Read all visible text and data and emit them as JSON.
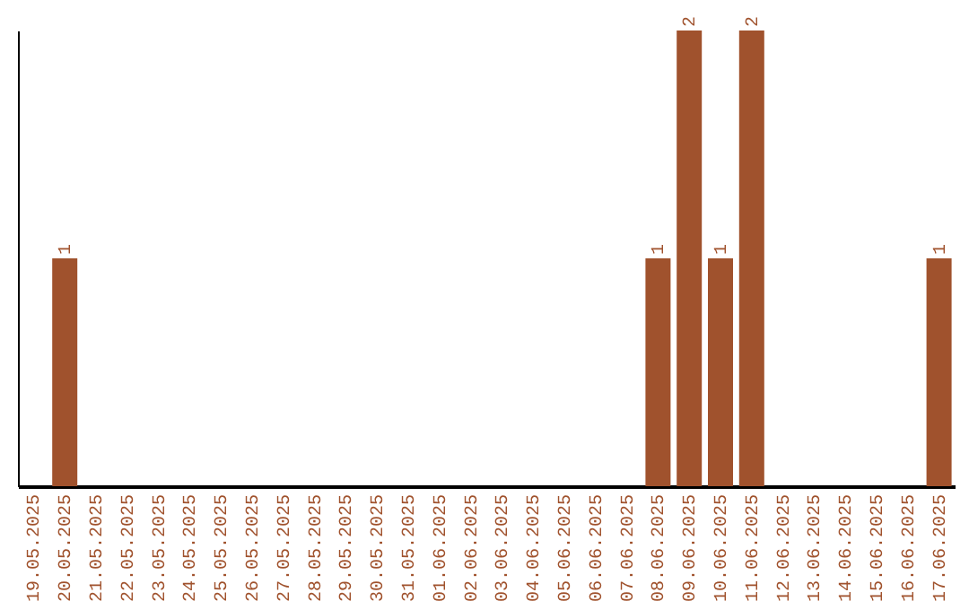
{
  "chart_data": {
    "type": "bar",
    "categories": [
      "19.05.2025",
      "20.05.2025",
      "21.05.2025",
      "22.05.2025",
      "23.05.2025",
      "24.05.2025",
      "25.05.2025",
      "26.05.2025",
      "27.05.2025",
      "28.05.2025",
      "29.05.2025",
      "30.05.2025",
      "31.05.2025",
      "01.06.2025",
      "02.06.2025",
      "03.06.2025",
      "04.06.2025",
      "05.06.2025",
      "06.06.2025",
      "07.06.2025",
      "08.06.2025",
      "09.06.2025",
      "10.06.2025",
      "11.06.2025",
      "12.06.2025",
      "13.06.2025",
      "14.06.2025",
      "15.06.2025",
      "16.06.2025",
      "17.06.2025"
    ],
    "values": [
      0,
      1,
      0,
      0,
      0,
      0,
      0,
      0,
      0,
      0,
      0,
      0,
      0,
      0,
      0,
      0,
      0,
      0,
      0,
      0,
      1,
      2,
      1,
      2,
      0,
      0,
      0,
      0,
      0,
      1
    ],
    "value_labels": [
      null,
      "1",
      null,
      null,
      null,
      null,
      null,
      null,
      null,
      null,
      null,
      null,
      null,
      null,
      null,
      null,
      null,
      null,
      null,
      null,
      "1",
      "2",
      "1",
      "2",
      null,
      null,
      null,
      null,
      null,
      "1"
    ],
    "color": "#a0522d",
    "tick_labels": "x",
    "grid": false
  }
}
